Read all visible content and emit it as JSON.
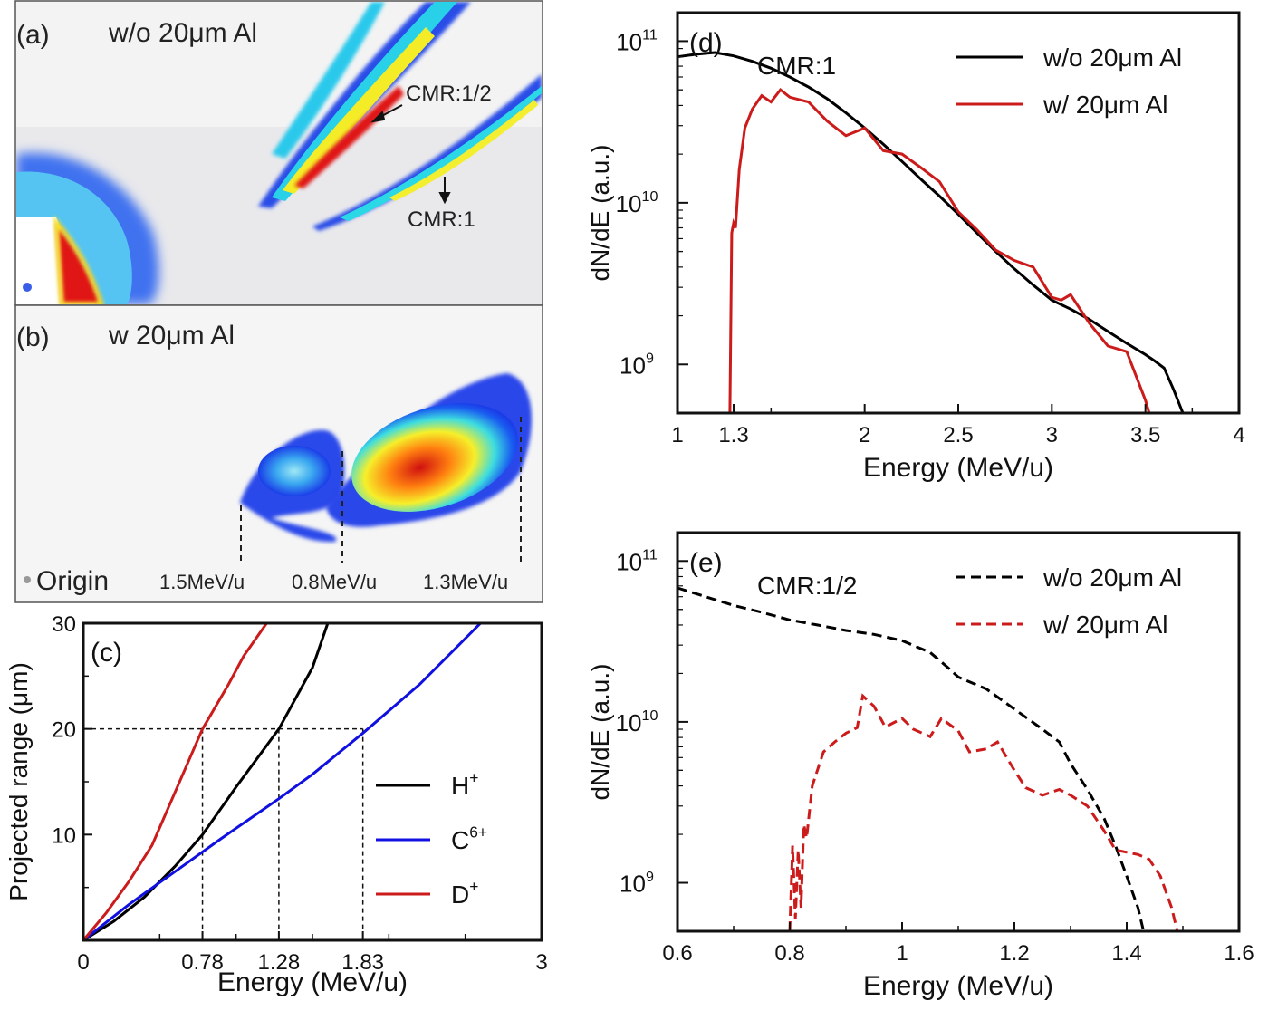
{
  "panel_a": {
    "tag": "(a)",
    "title": "w/o 20μm Al",
    "label_half": "CMR:1/2",
    "label_one": "CMR:1"
  },
  "panel_b": {
    "tag": "(b)",
    "title": "w   20μm Al",
    "origin": "Origin",
    "markers": [
      "1.5MeV/u",
      "0.8MeV/u",
      "1.3MeV/u"
    ]
  },
  "colors": {
    "black": "#000000",
    "red": "#cc1b1b",
    "blue": "#1010e0"
  },
  "chart_data": [
    {
      "id": "c",
      "type": "line",
      "tag": "(c)",
      "xlabel": "Energy (MeV/u)",
      "ylabel": "Projected range (μm)",
      "xlim": [
        0,
        3
      ],
      "ylim": [
        0,
        30
      ],
      "xticks": [
        "0",
        "0.78",
        "1.28",
        "1.83",
        "3"
      ],
      "yticks": [
        "10",
        "20",
        "30"
      ],
      "legend": {
        "placement": "right",
        "entries": [
          {
            "base": "H",
            "sup": "+",
            "color": "#000000"
          },
          {
            "base": "C",
            "sup": "6+",
            "color": "#1010e0"
          },
          {
            "base": "D",
            "sup": "+",
            "color": "#cc1b1b"
          }
        ]
      },
      "series": [
        {
          "key": "H+",
          "color": "#000000",
          "x": [
            0,
            0.2,
            0.4,
            0.6,
            0.78,
            1.0,
            1.28,
            1.5,
            1.6
          ],
          "y": [
            0,
            1.8,
            4.1,
            7.0,
            10.0,
            14.5,
            20.0,
            25.8,
            30.0
          ]
        },
        {
          "key": "C6+",
          "color": "#1010e0",
          "x": [
            0,
            0.3,
            0.6,
            0.9,
            1.28,
            1.5,
            1.83,
            2.2,
            2.6
          ],
          "y": [
            0,
            3.4,
            6.5,
            9.6,
            13.4,
            15.7,
            19.6,
            24.2,
            30.0
          ]
        },
        {
          "key": "D+",
          "color": "#cc1b1b",
          "x": [
            0,
            0.15,
            0.3,
            0.45,
            0.6,
            0.78,
            0.95,
            1.05,
            1.2
          ],
          "y": [
            0,
            2.6,
            5.6,
            9.0,
            14.0,
            20.0,
            24.2,
            26.9,
            30.0
          ]
        }
      ],
      "guides": [
        {
          "x": 0.78,
          "y": 20
        },
        {
          "x": 1.28,
          "y": 20
        },
        {
          "x": 1.83,
          "y": 20
        }
      ]
    },
    {
      "id": "d",
      "type": "line",
      "tag": "(d)",
      "annotation": "CMR:1",
      "xlabel": "Energy (MeV/u)",
      "ylabel": "dN/dE (a.u.)",
      "xlim": [
        1,
        4
      ],
      "ylim": [
        500000000.0,
        150000000000.0
      ],
      "yscale": "log",
      "xticks": [
        "1",
        "1.3",
        "2",
        "2.5",
        "3",
        "3.5",
        "4"
      ],
      "yticks": [
        {
          "base": "10",
          "exp": "9"
        },
        {
          "base": "10",
          "exp": "10"
        },
        {
          "base": "10",
          "exp": "11"
        }
      ],
      "legend": {
        "placement": "top-right",
        "entries": [
          {
            "label": "w/o 20μm Al",
            "color": "#000000",
            "dash": false
          },
          {
            "label": "w/   20μm Al",
            "color": "#cc1b1b",
            "dash": false
          }
        ]
      },
      "series": [
        {
          "key": "w/o",
          "color": "#000000",
          "dash": false,
          "x": [
            1.0,
            1.1,
            1.2,
            1.3,
            1.4,
            1.5,
            1.6,
            1.7,
            1.8,
            1.9,
            2.0,
            2.1,
            2.2,
            2.3,
            2.4,
            2.5,
            2.6,
            2.7,
            2.8,
            2.9,
            3.0,
            3.1,
            3.2,
            3.3,
            3.4,
            3.5,
            3.55,
            3.6,
            3.65,
            3.7
          ],
          "y": [
            80000000000.0,
            83000000000.0,
            85000000000.0,
            81000000000.0,
            75000000000.0,
            68000000000.0,
            60000000000.0,
            52000000000.0,
            44000000000.0,
            36000000000.0,
            29000000000.0,
            23000000000.0,
            18000000000.0,
            14000000000.0,
            11000000000.0,
            8500000000.0,
            6500000000.0,
            5000000000.0,
            3900000000.0,
            3100000000.0,
            2500000000.0,
            2200000000.0,
            1900000000.0,
            1600000000.0,
            1350000000.0,
            1150000000.0,
            1050000000.0,
            950000000.0,
            700000000.0,
            500000000.0
          ]
        },
        {
          "key": "w/",
          "color": "#cc1b1b",
          "dash": false,
          "x": [
            1.28,
            1.29,
            1.3,
            1.31,
            1.33,
            1.36,
            1.4,
            1.45,
            1.5,
            1.55,
            1.6,
            1.7,
            1.8,
            1.9,
            2.0,
            2.1,
            2.2,
            2.3,
            2.4,
            2.5,
            2.6,
            2.7,
            2.8,
            2.9,
            3.0,
            3.05,
            3.1,
            3.2,
            3.3,
            3.4,
            3.45,
            3.5,
            3.52
          ],
          "y": [
            500000000.0,
            6500000000.0,
            7500000000.0,
            7000000000.0,
            16000000000.0,
            29000000000.0,
            38000000000.0,
            46000000000.0,
            42000000000.0,
            50000000000.0,
            45000000000.0,
            42000000000.0,
            32000000000.0,
            26000000000.0,
            29000000000.0,
            21000000000.0,
            20000000000.0,
            16500000000.0,
            13500000000.0,
            8800000000.0,
            6800000000.0,
            5100000000.0,
            4400000000.0,
            4000000000.0,
            2600000000.0,
            2500000000.0,
            2700000000.0,
            1800000000.0,
            1300000000.0,
            1200000000.0,
            850000000.0,
            600000000.0,
            500000000.0
          ]
        }
      ]
    },
    {
      "id": "e",
      "type": "line",
      "tag": "(e)",
      "annotation": "CMR:1/2",
      "xlabel": "Energy (MeV/u)",
      "ylabel": "dN/dE (a.u.)",
      "xlim": [
        0.6,
        1.6
      ],
      "ylim": [
        500000000.0,
        150000000000.0
      ],
      "yscale": "log",
      "xticks": [
        "0.6",
        "0.8",
        "1",
        "1.2",
        "1.4",
        "1.6"
      ],
      "yticks": [
        {
          "base": "10",
          "exp": "9"
        },
        {
          "base": "10",
          "exp": "10"
        },
        {
          "base": "10",
          "exp": "11"
        }
      ],
      "legend": {
        "placement": "top-right",
        "entries": [
          {
            "label": "w/o 20μm Al",
            "color": "#000000",
            "dash": true
          },
          {
            "label": "w/   20μm Al",
            "color": "#cc1b1b",
            "dash": true
          }
        ]
      },
      "series": [
        {
          "key": "w/o",
          "color": "#000000",
          "dash": true,
          "x": [
            0.6,
            0.65,
            0.7,
            0.75,
            0.8,
            0.85,
            0.9,
            0.95,
            1.0,
            1.05,
            1.08,
            1.1,
            1.15,
            1.2,
            1.25,
            1.28,
            1.3,
            1.33,
            1.36,
            1.38,
            1.4,
            1.42,
            1.43
          ],
          "y": [
            68000000000.0,
            60000000000.0,
            53000000000.0,
            48000000000.0,
            43000000000.0,
            40000000000.0,
            37000000000.0,
            35000000000.0,
            32000000000.0,
            27000000000.0,
            22000000000.0,
            19000000000.0,
            16000000000.0,
            12000000000.0,
            9000000000.0,
            7500000000.0,
            5500000000.0,
            3800000000.0,
            2500000000.0,
            1700000000.0,
            1100000000.0,
            700000000.0,
            500000000.0
          ]
        },
        {
          "key": "w/",
          "color": "#cc1b1b",
          "dash": true,
          "x": [
            0.8,
            0.805,
            0.81,
            0.815,
            0.82,
            0.825,
            0.83,
            0.84,
            0.86,
            0.88,
            0.9,
            0.92,
            0.93,
            0.95,
            0.97,
            1.0,
            1.02,
            1.05,
            1.07,
            1.1,
            1.12,
            1.15,
            1.17,
            1.2,
            1.22,
            1.25,
            1.28,
            1.3,
            1.33,
            1.36,
            1.38,
            1.42,
            1.44,
            1.46,
            1.48,
            1.49
          ],
          "y": [
            500000000.0,
            1700000000.0,
            600000000.0,
            1600000000.0,
            700000000.0,
            2300000000.0,
            1900000000.0,
            4000000000.0,
            6500000000.0,
            7500000000.0,
            8500000000.0,
            9200000000.0,
            14500000000.0,
            12500000000.0,
            9300000000.0,
            10500000000.0,
            9000000000.0,
            8100000000.0,
            10500000000.0,
            8800000000.0,
            6500000000.0,
            6800000000.0,
            7500000000.0,
            5000000000.0,
            3900000000.0,
            3500000000.0,
            3800000000.0,
            3500000000.0,
            3000000000.0,
            2100000000.0,
            1600000000.0,
            1500000000.0,
            1400000000.0,
            1100000000.0,
            700000000.0,
            500000000.0
          ]
        }
      ]
    }
  ]
}
